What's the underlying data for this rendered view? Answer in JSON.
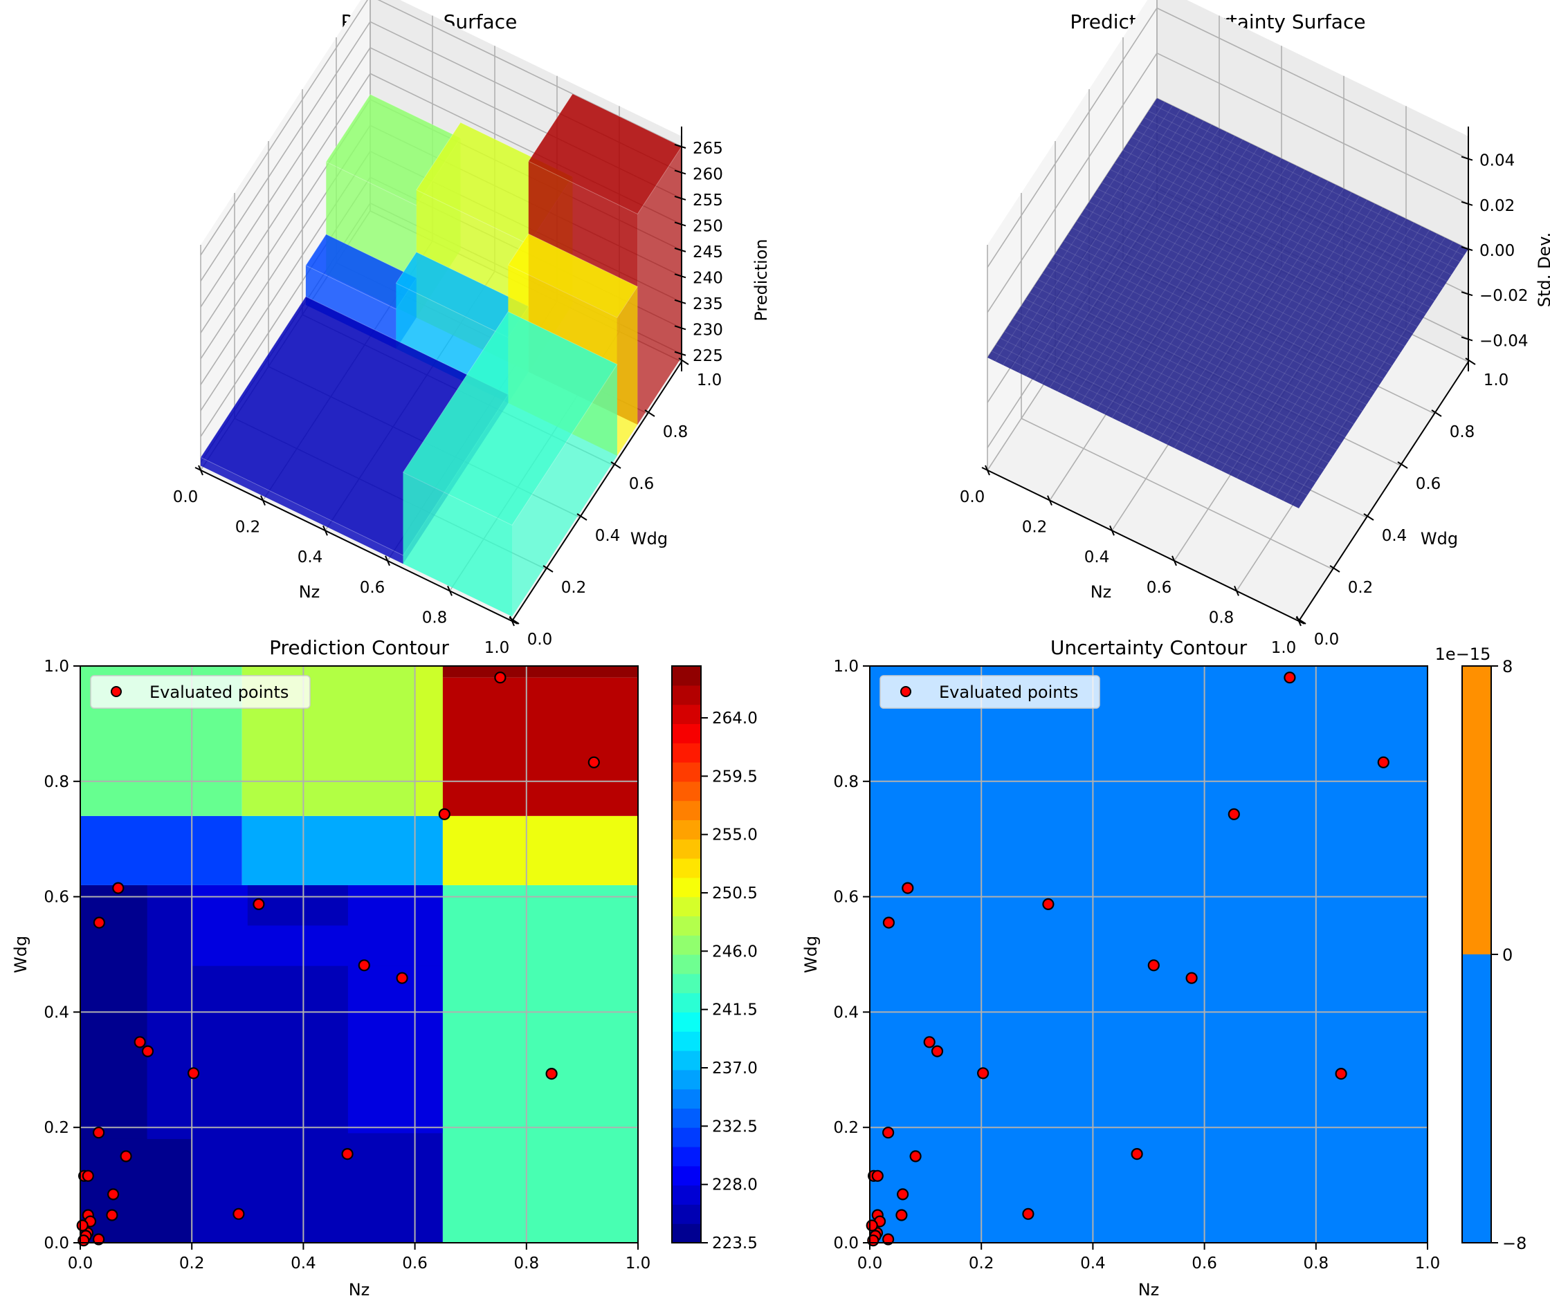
{
  "chart_data": [
    {
      "type": "surface3d",
      "title": "Prediction Surface",
      "xlabel": "Nz",
      "ylabel": "Wdg",
      "zlabel": "Prediction",
      "x_ticks": [
        "0.0",
        "0.2",
        "0.4",
        "0.6",
        "0.8",
        "1.0"
      ],
      "y_ticks": [
        "0.0",
        "0.2",
        "0.4",
        "0.6",
        "0.8",
        "1.0"
      ],
      "z_ticks": [
        "225",
        "230",
        "235",
        "240",
        "245",
        "250",
        "255",
        "260",
        "265"
      ],
      "xlim": [
        0,
        1
      ],
      "ylim": [
        0,
        1
      ],
      "zlim": [
        223.5,
        267
      ],
      "colormap": "jet",
      "regions": [
        {
          "nz": [
            0.0,
            0.65
          ],
          "wdg": [
            0.0,
            0.62
          ],
          "z": 226
        },
        {
          "nz": [
            0.0,
            0.29
          ],
          "wdg": [
            0.62,
            0.74
          ],
          "z": 232
        },
        {
          "nz": [
            0.29,
            0.65
          ],
          "wdg": [
            0.62,
            0.74
          ],
          "z": 237
        },
        {
          "nz": [
            0.0,
            0.29
          ],
          "wdg": [
            0.74,
            1.0
          ],
          "z": 246
        },
        {
          "nz": [
            0.29,
            0.65
          ],
          "wdg": [
            0.74,
            1.0
          ],
          "z": 249
        },
        {
          "nz": [
            0.65,
            1.0
          ],
          "wdg": [
            0.0,
            0.62
          ],
          "z": 242
        },
        {
          "nz": [
            0.65,
            1.0
          ],
          "wdg": [
            0.62,
            0.74
          ],
          "z": 251
        },
        {
          "nz": [
            0.65,
            1.0
          ],
          "wdg": [
            0.74,
            1.0
          ],
          "z": 265
        }
      ]
    },
    {
      "type": "surface3d",
      "title": "Prediction Uncertainty Surface",
      "xlabel": "Nz",
      "ylabel": "Wdg",
      "zlabel": "Std. Dev.",
      "x_ticks": [
        "0.0",
        "0.2",
        "0.4",
        "0.6",
        "0.8",
        "1.0"
      ],
      "y_ticks": [
        "0.0",
        "0.2",
        "0.4",
        "0.6",
        "0.8",
        "1.0"
      ],
      "z_ticks": [
        "−0.04",
        "−0.02",
        "0.00",
        "0.02",
        "0.04"
      ],
      "xlim": [
        0,
        1
      ],
      "ylim": [
        0,
        1
      ],
      "zlim": [
        -0.05,
        0.05
      ],
      "surface_value": 0.0,
      "surface_color": "#2b2b8f"
    },
    {
      "type": "heatmap",
      "title": "Prediction Contour",
      "xlabel": "Nz",
      "ylabel": "Wdg",
      "xlim": [
        0,
        1
      ],
      "ylim": [
        0,
        1
      ],
      "x_ticks": [
        "0.0",
        "0.2",
        "0.4",
        "0.6",
        "0.8",
        "1.0"
      ],
      "y_ticks": [
        "0.0",
        "0.2",
        "0.4",
        "0.6",
        "0.8",
        "1.0"
      ],
      "grid": true,
      "legend": {
        "label": "Evaluated points",
        "position": "top-left"
      },
      "colorbar": {
        "ticks": [
          "223.5",
          "228.0",
          "232.5",
          "237.0",
          "241.5",
          "246.0",
          "250.5",
          "255.0",
          "259.5",
          "264.0"
        ],
        "range": [
          223.5,
          268.0
        ],
        "levels": 30
      },
      "regions": [
        {
          "nz": [
            0.0,
            0.65
          ],
          "wdg": [
            0.0,
            0.62
          ],
          "z": 226.5,
          "color": "#0000b8"
        },
        {
          "nz": [
            0.0,
            0.12
          ],
          "wdg": [
            0.0,
            0.62
          ],
          "z": 224.5,
          "color": "#00008f"
        },
        {
          "nz": [
            0.0,
            0.2
          ],
          "wdg": [
            0.0,
            0.18
          ],
          "z": 224.5,
          "color": "#00008f"
        },
        {
          "nz": [
            0.12,
            0.2
          ],
          "wdg": [
            0.18,
            0.48
          ],
          "z": 226.0,
          "color": "#0000b8"
        },
        {
          "nz": [
            0.2,
            0.65
          ],
          "wdg": [
            0.48,
            0.62
          ],
          "z": 228.5,
          "color": "#0000e0"
        },
        {
          "nz": [
            0.3,
            0.48
          ],
          "wdg": [
            0.55,
            0.62
          ],
          "z": 226.0,
          "color": "#0000b8"
        },
        {
          "nz": [
            0.48,
            0.65
          ],
          "wdg": [
            0.19,
            0.48
          ],
          "z": 228.5,
          "color": "#0000e0"
        },
        {
          "nz": [
            0.0,
            0.29
          ],
          "wdg": [
            0.62,
            0.74
          ],
          "z": 232.0,
          "color": "#0040ff"
        },
        {
          "nz": [
            0.29,
            0.65
          ],
          "wdg": [
            0.62,
            0.74
          ],
          "z": 237.0,
          "color": "#00aaff"
        },
        {
          "nz": [
            0.0,
            0.29
          ],
          "wdg": [
            0.74,
            1.0
          ],
          "z": 244.5,
          "color": "#66ff90"
        },
        {
          "nz": [
            0.29,
            0.65
          ],
          "wdg": [
            0.74,
            1.0
          ],
          "z": 249.0,
          "color": "#b2ff44"
        },
        {
          "nz": [
            0.6,
            0.65
          ],
          "wdg": [
            0.74,
            1.0
          ],
          "z": 250.5,
          "color": "#ccff2a"
        },
        {
          "nz": [
            0.65,
            1.0
          ],
          "wdg": [
            0.0,
            0.62
          ],
          "z": 242.0,
          "color": "#48ffb2"
        },
        {
          "nz": [
            0.65,
            1.0
          ],
          "wdg": [
            0.62,
            0.74
          ],
          "z": 251.5,
          "color": "#eeff0e"
        },
        {
          "nz": [
            0.65,
            1.0
          ],
          "wdg": [
            0.74,
            0.98
          ],
          "z": 265.0,
          "color": "#b80000"
        },
        {
          "nz": [
            0.65,
            1.0
          ],
          "wdg": [
            0.98,
            1.0
          ],
          "z": 267.0,
          "color": "#900000"
        }
      ],
      "points": {
        "nz": [
          0.753,
          0.921,
          0.653,
          0.068,
          0.034,
          0.32,
          0.509,
          0.577,
          0.107,
          0.121,
          0.203,
          0.845,
          0.033,
          0.082,
          0.479,
          0.007,
          0.014,
          0.059,
          0.057,
          0.284,
          0.014,
          0.018,
          0.013,
          0.004,
          0.01,
          0.033,
          0.006
        ],
        "wdg": [
          0.98,
          0.833,
          0.743,
          0.615,
          0.555,
          0.587,
          0.481,
          0.459,
          0.348,
          0.332,
          0.294,
          0.293,
          0.191,
          0.15,
          0.154,
          0.116,
          0.116,
          0.084,
          0.048,
          0.05,
          0.048,
          0.037,
          0.017,
          0.03,
          0.012,
          0.006,
          0.004
        ]
      }
    },
    {
      "type": "heatmap",
      "title": "Uncertainty Contour",
      "xlabel": "Nz",
      "ylabel": "Wdg",
      "xlim": [
        0,
        1
      ],
      "ylim": [
        0,
        1
      ],
      "x_ticks": [
        "0.0",
        "0.2",
        "0.4",
        "0.6",
        "0.8",
        "1.0"
      ],
      "y_ticks": [
        "0.0",
        "0.2",
        "0.4",
        "0.6",
        "0.8",
        "1.0"
      ],
      "grid": true,
      "legend": {
        "label": "Evaluated points",
        "position": "top-left"
      },
      "fill_value": 0.0,
      "fill_color": "#0080ff",
      "colorbar": {
        "ticks": [
          "−8",
          "0",
          "8"
        ],
        "offset_label": "1e−15",
        "bands": [
          {
            "from": -8,
            "to": 0,
            "color": "#0080ff"
          },
          {
            "from": 0,
            "to": 8,
            "color": "#ff9000"
          }
        ]
      },
      "points_ref": "same as Prediction Contour"
    }
  ]
}
